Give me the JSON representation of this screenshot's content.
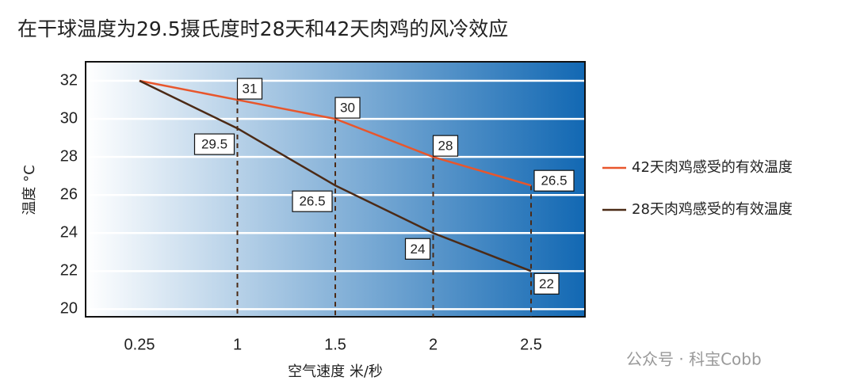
{
  "chart_data": {
    "type": "line",
    "title": "在干球温度为29.5摄氏度时28天和42天肉鸡的风冷效应",
    "x_label": "空气速度 米/秒",
    "y_label": "温度 °C",
    "categories": [
      "0.25",
      "1",
      "1.5",
      "2",
      "2.5"
    ],
    "series": [
      {
        "name": "42天肉鸡感受的有效温度",
        "color": "#e8562c",
        "values": [
          32,
          31,
          30,
          28,
          26.5
        ]
      },
      {
        "name": "28天肉鸡感受的有效温度",
        "color": "#4b2a16",
        "values": [
          32,
          29.5,
          26.5,
          24,
          22
        ]
      }
    ],
    "ylim": [
      19.6,
      33
    ],
    "yticks": [
      20,
      22,
      24,
      26,
      28,
      30,
      32
    ],
    "grid": true,
    "legend": "right",
    "watermark": "公众号 · 科宝Cobb"
  }
}
